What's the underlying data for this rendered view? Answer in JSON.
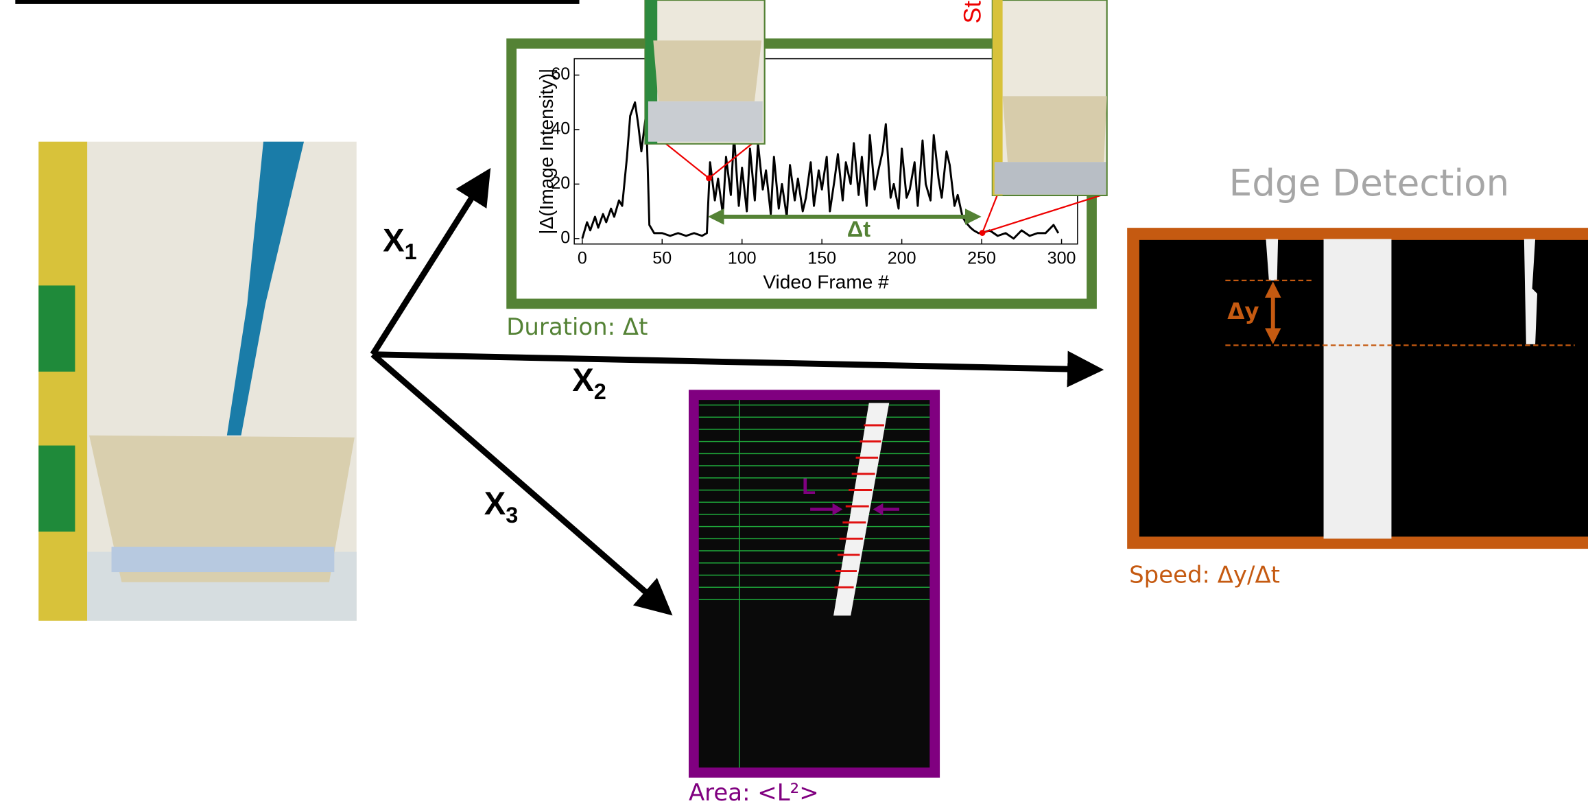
{
  "chart_data": {
    "type": "line",
    "xlabel": "Video Frame #",
    "ylabel": "|Δ(Image Intensity)|",
    "x": [
      0,
      3,
      5,
      8,
      10,
      13,
      15,
      18,
      20,
      23,
      25,
      28,
      30,
      33,
      35,
      37,
      40,
      42,
      45,
      50,
      55,
      60,
      65,
      70,
      75,
      78,
      80,
      83,
      85,
      88,
      90,
      93,
      95,
      98,
      100,
      103,
      105,
      108,
      110,
      113,
      115,
      118,
      120,
      123,
      125,
      128,
      130,
      133,
      135,
      138,
      140,
      143,
      145,
      148,
      150,
      153,
      155,
      158,
      160,
      163,
      165,
      168,
      170,
      173,
      175,
      178,
      180,
      183,
      185,
      188,
      190,
      193,
      195,
      198,
      200,
      203,
      205,
      208,
      210,
      213,
      215,
      218,
      220,
      223,
      225,
      228,
      230,
      233,
      235,
      238,
      240,
      243,
      245,
      248,
      250,
      255,
      260,
      265,
      270,
      275,
      280,
      285,
      290,
      295,
      298
    ],
    "series": [
      {
        "color": "#000000",
        "values": [
          0,
          6,
          3,
          8,
          4,
          9,
          6,
          11,
          8,
          14,
          12,
          30,
          45,
          50,
          42,
          32,
          46,
          5,
          2,
          2,
          1,
          2,
          1,
          2,
          1,
          2,
          28,
          14,
          22,
          9,
          30,
          16,
          38,
          12,
          26,
          10,
          33,
          14,
          35,
          18,
          25,
          9,
          30,
          11,
          20,
          8,
          27,
          14,
          22,
          10,
          15,
          28,
          12,
          25,
          18,
          30,
          10,
          22,
          31,
          14,
          28,
          20,
          35,
          16,
          30,
          12,
          38,
          18,
          24,
          32,
          42,
          15,
          20,
          11,
          33,
          15,
          18,
          28,
          12,
          36,
          20,
          14,
          38,
          22,
          15,
          32,
          27,
          12,
          16,
          8,
          6,
          4,
          3,
          2,
          2,
          3,
          1,
          2,
          0,
          3,
          1,
          2,
          2,
          5,
          2
        ]
      }
    ],
    "xlim": [
      -5,
      310
    ],
    "ylim": [
      -2,
      66
    ],
    "xticks": [
      0,
      50,
      100,
      150,
      200,
      250,
      300
    ],
    "yticks": [
      0,
      20,
      40,
      60
    ],
    "annotation": "Δt",
    "inset_text": "St"
  },
  "arrows": [
    {
      "main": "X",
      "sub": "1"
    },
    {
      "main": "X",
      "sub": "2"
    },
    {
      "main": "X",
      "sub": "3"
    }
  ],
  "captions": {
    "duration": "Duration:  Δt",
    "speed": "Speed:  Δy/Δt",
    "area": "Area:  <L²>"
  },
  "edge_title": "Edge Detection",
  "delta_y": "Δy",
  "length": "L"
}
